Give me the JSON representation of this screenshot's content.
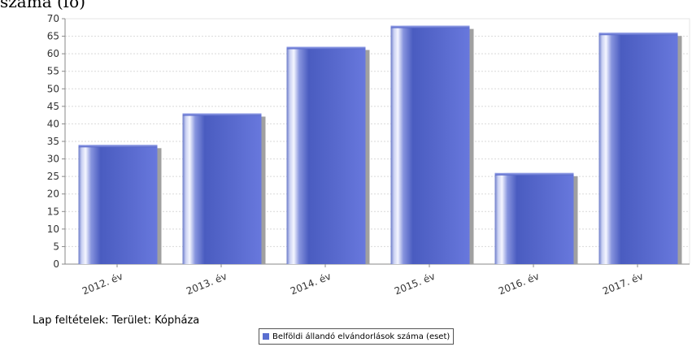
{
  "chart_data": {
    "type": "bar",
    "title": "száma (fő)",
    "categories": [
      "2012. év",
      "2013. év",
      "2014. év",
      "2015. év",
      "2016. év",
      "2017. év"
    ],
    "series": [
      {
        "name": "Belföldi állandó elvándorlások száma (eset)",
        "values": [
          34,
          43,
          62,
          68,
          26,
          66
        ]
      }
    ],
    "ylim": [
      0,
      70
    ],
    "ytick_step": 5,
    "yticks": [
      "0",
      "5",
      "10",
      "15",
      "20",
      "25",
      "30",
      "35",
      "40",
      "45",
      "50",
      "55",
      "60",
      "65",
      "70"
    ],
    "grid": true,
    "legend_placement": "bottom",
    "bar_color": "#5a6fd0",
    "filter_text": "Lap feltételek: Terület: Kópháza"
  }
}
